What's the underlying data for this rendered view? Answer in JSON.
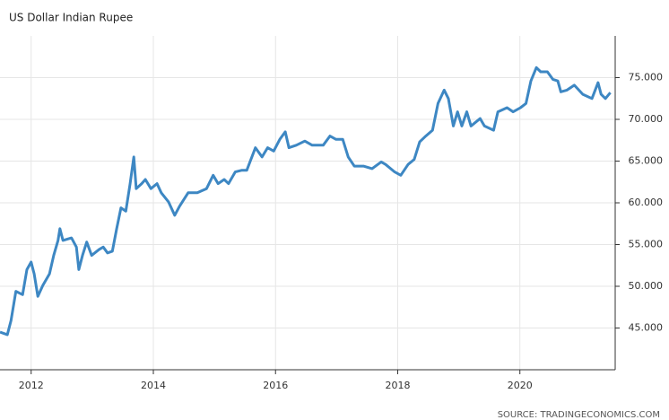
{
  "chart_data": {
    "type": "line",
    "title": "US Dollar Indian Rupee",
    "source": "SOURCE: TRADINGECONOMICS.COM",
    "series": [
      {
        "name": "US Dollar Indian Rupee",
        "color": "#3d87c3",
        "x": [
          2011.49,
          2011.61,
          2011.67,
          2011.75,
          2011.86,
          2011.93,
          2012.0,
          2012.05,
          2012.11,
          2012.19,
          2012.3,
          2012.37,
          2012.44,
          2012.47,
          2012.52,
          2012.66,
          2012.74,
          2012.78,
          2012.84,
          2012.91,
          2012.99,
          2013.11,
          2013.18,
          2013.25,
          2013.33,
          2013.4,
          2013.47,
          2013.55,
          2013.62,
          2013.68,
          2013.72,
          2013.81,
          2013.87,
          2013.96,
          2014.06,
          2014.13,
          2014.25,
          2014.35,
          2014.43,
          2014.57,
          2014.72,
          2014.87,
          2014.98,
          2015.06,
          2015.16,
          2015.23,
          2015.34,
          2015.45,
          2015.53,
          2015.67,
          2015.78,
          2015.87,
          2015.97,
          2016.07,
          2016.16,
          2016.22,
          2016.34,
          2016.48,
          2016.6,
          2016.78,
          2016.89,
          2016.99,
          2017.1,
          2017.19,
          2017.29,
          2017.44,
          2017.58,
          2017.73,
          2017.8,
          2017.95,
          2018.05,
          2018.17,
          2018.27,
          2018.36,
          2018.46,
          2018.57,
          2018.66,
          2018.76,
          2018.83,
          2018.91,
          2018.98,
          2019.05,
          2019.13,
          2019.2,
          2019.35,
          2019.42,
          2019.57,
          2019.64,
          2019.79,
          2019.89,
          2020.01,
          2020.1,
          2020.18,
          2020.27,
          2020.34,
          2020.45,
          2020.54,
          2020.62,
          2020.67,
          2020.77,
          2020.89,
          2021.03,
          2021.18,
          2021.28,
          2021.33,
          2021.4,
          2021.48
        ],
        "values": [
          44.5,
          44.2,
          45.9,
          49.4,
          49.0,
          52.0,
          52.9,
          51.5,
          48.8,
          50.1,
          51.5,
          53.7,
          55.5,
          56.9,
          55.5,
          55.8,
          54.7,
          52.0,
          53.7,
          55.3,
          53.7,
          54.4,
          54.7,
          54.0,
          54.2,
          56.9,
          59.4,
          59.0,
          62.3,
          65.5,
          61.7,
          62.3,
          62.8,
          61.7,
          62.3,
          61.2,
          60.1,
          58.5,
          59.6,
          61.2,
          61.2,
          61.7,
          63.3,
          62.3,
          62.8,
          62.3,
          63.7,
          63.9,
          63.9,
          66.6,
          65.5,
          66.6,
          66.2,
          67.6,
          68.5,
          66.6,
          66.9,
          67.4,
          66.9,
          66.9,
          68.0,
          67.6,
          67.6,
          65.5,
          64.4,
          64.4,
          64.1,
          64.9,
          64.6,
          63.7,
          63.3,
          64.6,
          65.2,
          67.3,
          68.0,
          68.7,
          71.9,
          73.5,
          72.5,
          69.2,
          70.9,
          69.2,
          70.9,
          69.2,
          70.1,
          69.2,
          68.7,
          70.9,
          71.4,
          70.9,
          71.4,
          71.9,
          74.6,
          76.2,
          75.7,
          75.7,
          74.8,
          74.6,
          73.3,
          73.5,
          74.1,
          73.0,
          72.5,
          74.4,
          73.0,
          72.5,
          73.2
        ]
      }
    ],
    "xlim": [
      2011.49,
      2021.56
    ],
    "xticks": [
      2012,
      2014,
      2016,
      2018,
      2020
    ],
    "ylim": [
      40,
      80
    ],
    "yticks": [
      {
        "value": 45,
        "label": "45.000"
      },
      {
        "value": 50,
        "label": "50.000"
      },
      {
        "value": 55,
        "label": "55.000"
      },
      {
        "value": 60,
        "label": "60.000"
      },
      {
        "value": 65,
        "label": "65.000"
      },
      {
        "value": 70,
        "label": "70.000"
      },
      {
        "value": 75,
        "label": "75.000"
      }
    ],
    "grid": true
  }
}
